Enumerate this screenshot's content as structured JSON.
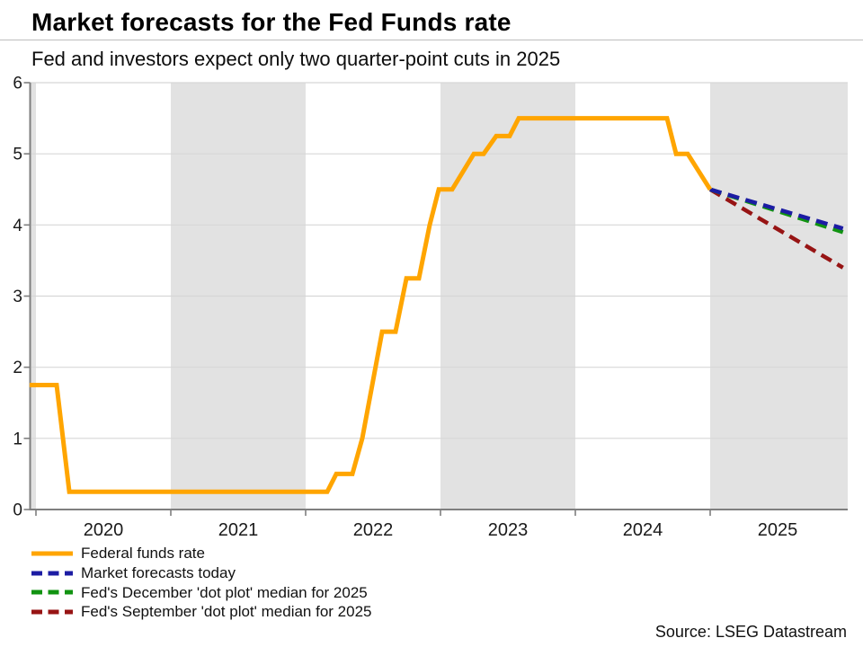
{
  "header": {
    "title": "Market forecasts for the Fed Funds rate",
    "subtitle": "Fed and investors expect only two quarter-point cuts in 2025"
  },
  "source": "Source: LSEG Datastream",
  "colors": {
    "fed_funds": "#FFA500",
    "market_forecast": "#1c1ca3",
    "dec_dot_plot": "#119311",
    "sept_dot_plot": "#971414",
    "band": "#e2e2e2",
    "gridline": "#d7d7d7",
    "axis": "#7f7f7f",
    "tick_label": "#1a1a1a"
  },
  "legend": [
    {
      "label": "Federal funds rate",
      "style": "solid",
      "color": "#FFA500"
    },
    {
      "label": "Market forecasts today",
      "style": "dashed",
      "color": "#1c1ca3"
    },
    {
      "label": "Fed's December 'dot plot' median for 2025",
      "style": "dashed",
      "color": "#119311"
    },
    {
      "label": "Fed's September 'dot plot' median for 2025",
      "style": "dashed",
      "color": "#971414"
    }
  ],
  "chart_data": {
    "type": "line",
    "title": "Market forecasts for the Fed Funds rate",
    "subtitle": "Fed and investors expect only two quarter-point cuts in 2025",
    "xlabel": "",
    "ylabel": "",
    "x_axis": {
      "range": [
        2019.95,
        2026.02
      ],
      "ticks": [
        2020,
        2021,
        2022,
        2023,
        2024,
        2025
      ],
      "labels": [
        "2020",
        "2021",
        "2022",
        "2023",
        "2024",
        "2025"
      ]
    },
    "y_axis": {
      "range": [
        0,
        6
      ],
      "ticks": [
        0,
        1,
        2,
        3,
        4,
        5,
        6
      ],
      "labels": [
        "0",
        "1",
        "2",
        "3",
        "4",
        "5",
        "6"
      ]
    },
    "grid": true,
    "legend_position": "bottom-left",
    "shaded_bands": [
      [
        2019.95,
        2020.0
      ],
      [
        2021.0,
        2022.0
      ],
      [
        2023.0,
        2024.0
      ],
      [
        2025.0,
        2026.02
      ]
    ],
    "series": [
      {
        "name": "Fed's September 'dot plot' median for 2025",
        "style": "dashed",
        "color": "#971414",
        "points": [
          [
            2025.0,
            4.5
          ],
          [
            2025.985,
            3.4
          ]
        ]
      },
      {
        "name": "Fed's December 'dot plot' median for 2025",
        "style": "dashed",
        "color": "#119311",
        "points": [
          [
            2025.0,
            4.5
          ],
          [
            2025.985,
            3.9
          ]
        ]
      },
      {
        "name": "Market forecasts today",
        "style": "dashed",
        "color": "#1c1ca3",
        "points": [
          [
            2025.0,
            4.5
          ],
          [
            2025.985,
            3.95
          ]
        ]
      },
      {
        "name": "Federal funds rate",
        "style": "solid",
        "color": "#FFA500",
        "points": [
          [
            2019.953,
            1.75
          ],
          [
            2020.153,
            1.75
          ],
          [
            2020.247,
            0.25
          ],
          [
            2022.16,
            0.25
          ],
          [
            2022.227,
            0.5
          ],
          [
            2022.347,
            0.5
          ],
          [
            2022.42,
            1.0
          ],
          [
            2022.567,
            2.5
          ],
          [
            2022.667,
            2.5
          ],
          [
            2022.747,
            3.25
          ],
          [
            2022.84,
            3.25
          ],
          [
            2022.92,
            4.0
          ],
          [
            2022.987,
            4.5
          ],
          [
            2023.087,
            4.5
          ],
          [
            2023.247,
            5.0
          ],
          [
            2023.32,
            5.0
          ],
          [
            2023.413,
            5.25
          ],
          [
            2023.513,
            5.25
          ],
          [
            2023.58,
            5.5
          ],
          [
            2024.68,
            5.5
          ],
          [
            2024.747,
            5.0
          ],
          [
            2024.833,
            5.0
          ],
          [
            2025.0,
            4.5
          ]
        ]
      }
    ]
  }
}
